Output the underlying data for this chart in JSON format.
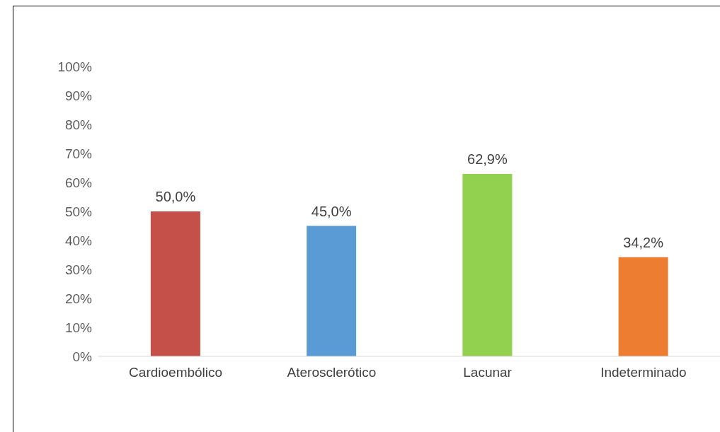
{
  "chart_data": {
    "type": "bar",
    "categories": [
      "Cardioembólico",
      "Aterosclerótico",
      "Lacunar",
      "Indeterminado"
    ],
    "values": [
      50.0,
      45.0,
      62.9,
      34.2
    ],
    "colors": [
      "#c5504a",
      "#5b9bd5",
      "#92d050",
      "#ed7d31"
    ],
    "value_labels": [
      "50,0%",
      "45,0%",
      "62,9%",
      "34,2%"
    ],
    "ylim": [
      0,
      100
    ],
    "yticks": [
      {
        "value": 0,
        "label": "0%"
      },
      {
        "value": 10,
        "label": "10%"
      },
      {
        "value": 20,
        "label": "20%"
      },
      {
        "value": 30,
        "label": "30%"
      },
      {
        "value": 40,
        "label": "40%"
      },
      {
        "value": 50,
        "label": "50%"
      },
      {
        "value": 60,
        "label": "60%"
      },
      {
        "value": 70,
        "label": "70%"
      },
      {
        "value": 80,
        "label": "80%"
      },
      {
        "value": 90,
        "label": "90%"
      },
      {
        "value": 100,
        "label": "100%"
      }
    ],
    "grid": false,
    "legend": false
  }
}
